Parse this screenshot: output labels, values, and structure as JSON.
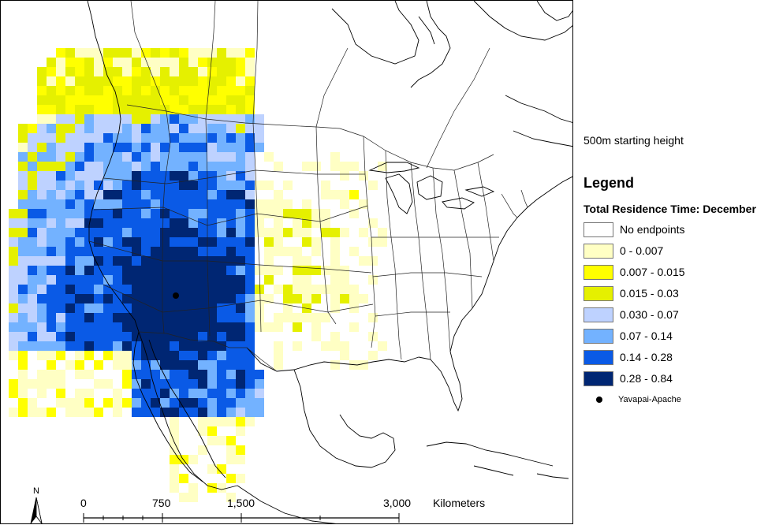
{
  "subtitle": "500m starting height",
  "legend": {
    "title": "Legend",
    "subtitle": "Total Residence Time: December",
    "items": [
      {
        "label": "No endpoints",
        "color": "#ffffff"
      },
      {
        "label": "0 - 0.007",
        "color": "#ffffc4"
      },
      {
        "label": "0.007 - 0.015",
        "color": "#ffff00"
      },
      {
        "label": "0.015 - 0.03",
        "color": "#e5f000"
      },
      {
        "label": "0.030 - 0.07",
        "color": "#bed2ff"
      },
      {
        "label": "0.07 - 0.14",
        "color": "#73b2ff"
      },
      {
        "label": "0.14 - 0.28",
        "color": "#0a5ae6"
      },
      {
        "label": "0.28 - 0.84",
        "color": "#002673"
      }
    ],
    "point_label": "Yavapai-Apache"
  },
  "scale_bar": {
    "ticks": [
      "0",
      "750",
      "1,500",
      "3,000"
    ],
    "unit": "Kilometers"
  },
  "north_arrow": {
    "label": "N"
  }
}
